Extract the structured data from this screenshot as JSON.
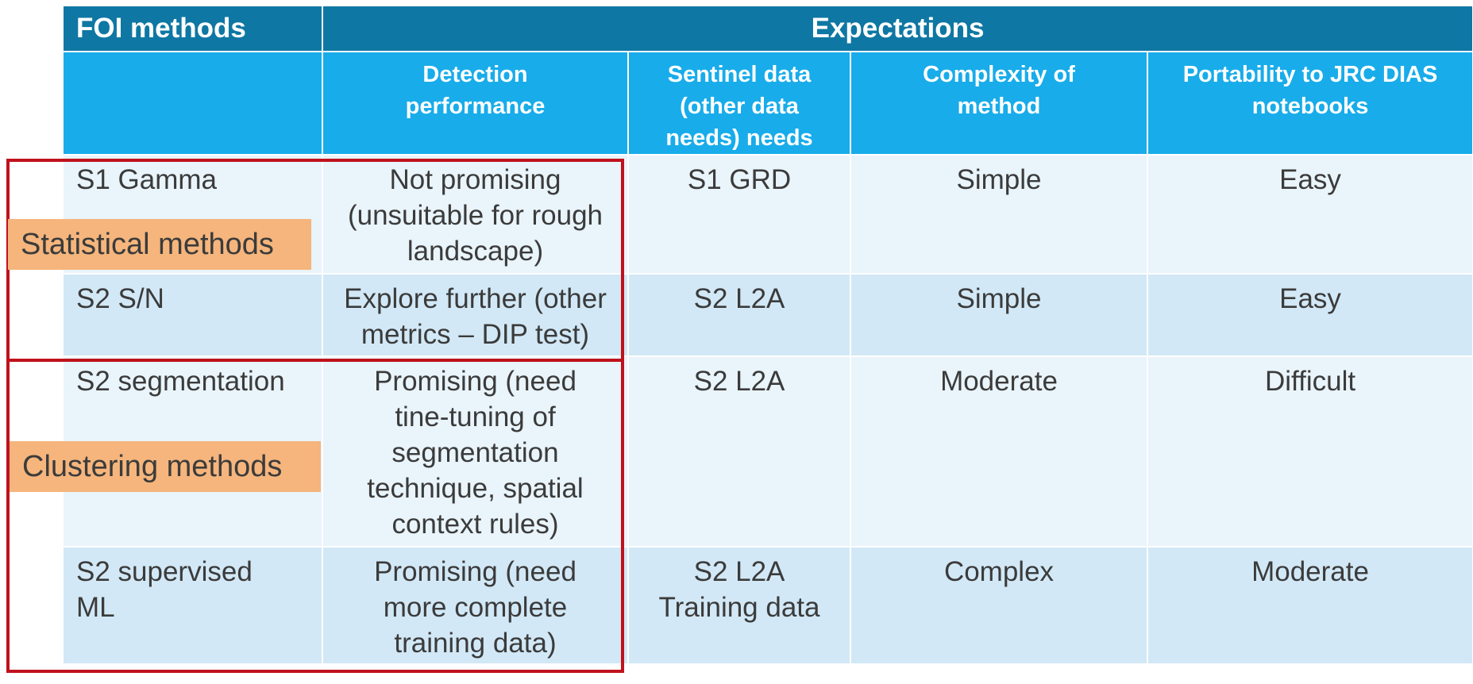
{
  "header": {
    "col0": "FOI methods",
    "span": "Expectations"
  },
  "subheader": {
    "col0": "",
    "col1": "Detection\nperformance",
    "col2": "Sentinel data\n(other data\nneeds) needs",
    "col3": "Complexity of\nmethod",
    "col4": "Portability to JRC DIAS\nnotebooks"
  },
  "rows": [
    {
      "method": "S1 Gamma",
      "detection": "Not promising\n(unsuitable for rough\nlandscape)",
      "data": "S1 GRD",
      "complexity": "Simple",
      "portability": "Easy"
    },
    {
      "method": "S2 S/N",
      "detection": "Explore further (other\nmetrics – DIP test)",
      "data": "S2 L2A",
      "complexity": "Simple",
      "portability": "Easy"
    },
    {
      "method": "S2 segmentation",
      "detection": "Promising (need\ntine-tuning of\nsegmentation\ntechnique, spatial\ncontext rules)",
      "data": "S2 L2A",
      "complexity": "Moderate",
      "portability": "Difficult"
    },
    {
      "method": "S2 supervised\nML",
      "detection": "Promising (need\nmore complete\ntraining data)",
      "data": "S2 L2A\nTraining data",
      "complexity": "Complex",
      "portability": "Moderate"
    }
  ],
  "groups": {
    "statistical": "Statistical methods",
    "clustering": "Clustering methods"
  },
  "colors": {
    "header_dark": "#0f77a3",
    "header_light": "#18acea",
    "row_light": "#e9f4fb",
    "row_dark": "#d2e8f6",
    "highlight_border": "#c0121d",
    "label_fill": "#f5b57c"
  }
}
